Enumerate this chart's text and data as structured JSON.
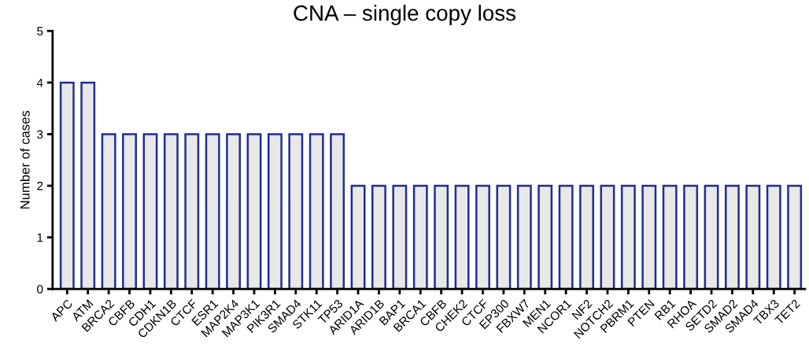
{
  "chart_data": {
    "type": "bar",
    "title": "CNA – single copy loss",
    "ylabel": "Number of cases",
    "categories": [
      "APC",
      "ATM",
      "BRCA2",
      "CBFB",
      "CDH1",
      "CDKN1B",
      "CTCF",
      "ESR1",
      "MAP2K4",
      "MAP3K1",
      "PIK3R1",
      "SMAD4",
      "STK11",
      "TP53",
      "ARID1A",
      "ARID1B",
      "BAP1",
      "BRCA1",
      "CBFB",
      "CHEK2",
      "CTCF",
      "EP300",
      "FBXW7",
      "MEN1",
      "NCOR1",
      "NF2",
      "NOTCH2",
      "PBRM1",
      "PTEN",
      "RB1",
      "RHOA",
      "SETD2",
      "SMAD2",
      "SMAD4",
      "TBX3",
      "TET2"
    ],
    "values": [
      4,
      4,
      3,
      3,
      3,
      3,
      3,
      3,
      3,
      3,
      3,
      3,
      3,
      3,
      2,
      2,
      2,
      2,
      2,
      2,
      2,
      2,
      2,
      2,
      2,
      2,
      2,
      2,
      2,
      2,
      2,
      2,
      2,
      2,
      2,
      2
    ],
    "color": "#e8e8e8",
    "ylim": [
      0,
      5
    ],
    "yticks": [
      0,
      1,
      2,
      3,
      4,
      5
    ],
    "grid": false,
    "legend": false
  }
}
